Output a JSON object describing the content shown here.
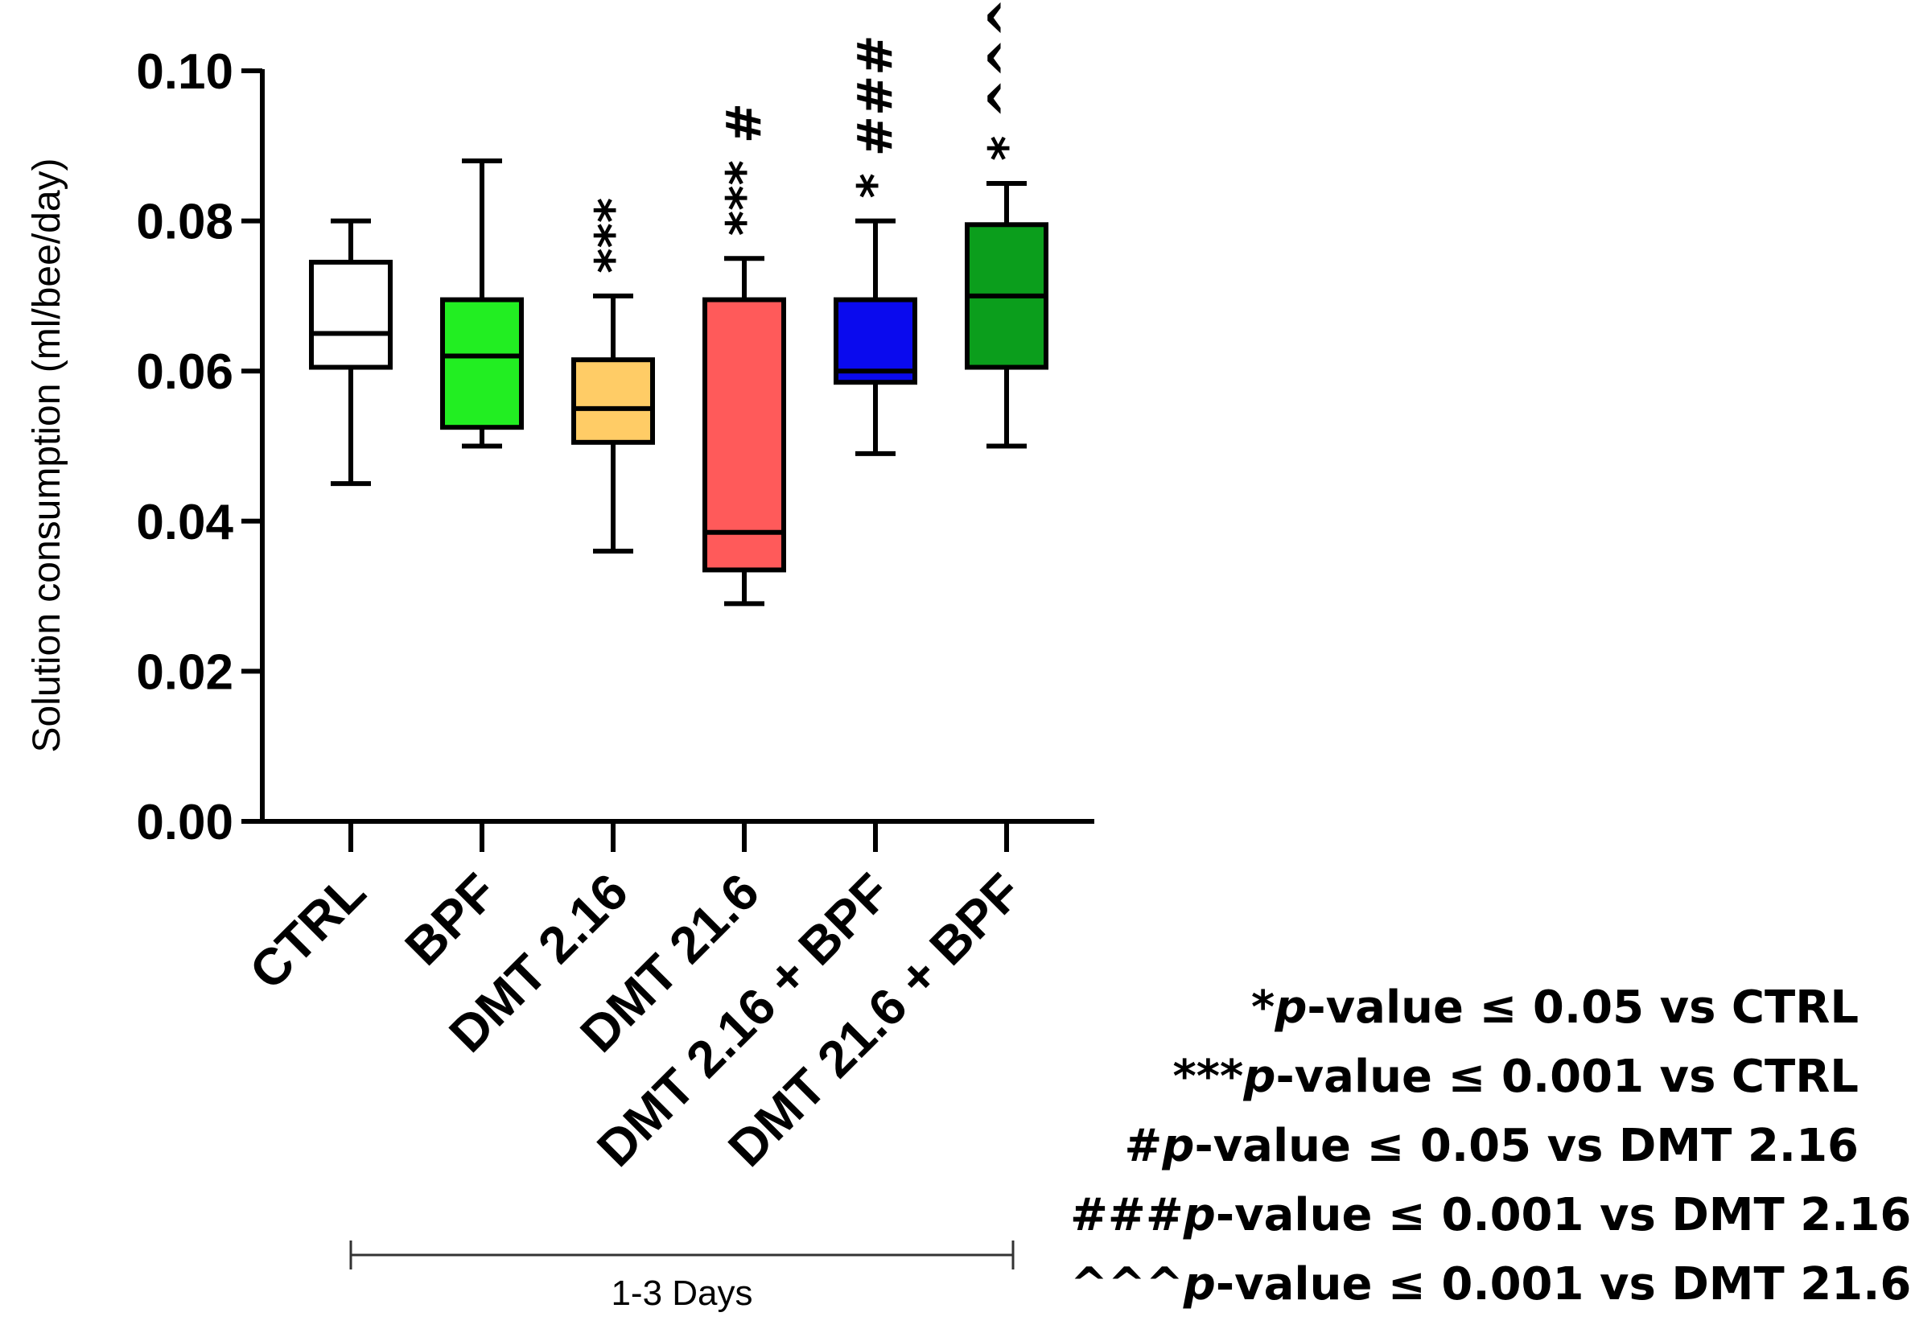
{
  "chart_data": {
    "type": "box",
    "title": "",
    "xlabel": "",
    "ylabel": "Solution consumption (ml/bee/day)",
    "ylim": [
      0,
      0.1
    ],
    "yticks": [
      "0.00",
      "0.02",
      "0.04",
      "0.06",
      "0.08",
      "0.10"
    ],
    "categories": [
      "CTRL",
      "BPF",
      "DMT 2.16",
      "DMT 21.6",
      "DMT 2.16 + BPF",
      "DMT 21.6 + BPF"
    ],
    "boxes": [
      {
        "category": "CTRL",
        "min": 0.045,
        "q1": 0.0605,
        "median": 0.065,
        "q3": 0.0745,
        "max": 0.08,
        "color": "#ffffff",
        "sig": ""
      },
      {
        "category": "BPF",
        "min": 0.05,
        "q1": 0.0525,
        "median": 0.062,
        "q3": 0.0695,
        "max": 0.088,
        "color": "#22ee22",
        "sig": ""
      },
      {
        "category": "DMT 2.16",
        "min": 0.036,
        "q1": 0.0505,
        "median": 0.055,
        "q3": 0.0615,
        "max": 0.07,
        "color": "#ffcc66",
        "sig": "***"
      },
      {
        "category": "DMT 21.6",
        "min": 0.029,
        "q1": 0.0335,
        "median": 0.0385,
        "q3": 0.0695,
        "max": 0.075,
        "color": "#ff5a5a",
        "sig": "*** #"
      },
      {
        "category": "DMT 2.16 + BPF",
        "min": 0.049,
        "q1": 0.0585,
        "median": 0.06,
        "q3": 0.0695,
        "max": 0.08,
        "color": "#0a0aee",
        "sig": "* ###"
      },
      {
        "category": "DMT 21.6 + BPF",
        "min": 0.05,
        "q1": 0.0605,
        "median": 0.07,
        "q3": 0.0795,
        "max": 0.085,
        "color": "#0b9e1c",
        "sig": "* ^^^"
      }
    ],
    "group_bracket": {
      "label": "1-3 Days"
    }
  },
  "legend": [
    {
      "marker": "*",
      "rest": "-value ≤ 0.05 vs CTRL"
    },
    {
      "marker": "***",
      "rest": "-value ≤ 0.001 vs CTRL"
    },
    {
      "marker": "#",
      "rest": "-value ≤ 0.05 vs DMT 2.16"
    },
    {
      "marker": "###",
      "rest": "-value ≤ 0.001 vs DMT 2.16"
    },
    {
      "marker": "^^^",
      "rest": "-value ≤ 0.001 vs DMT 21.6"
    }
  ],
  "p_letter": "p"
}
